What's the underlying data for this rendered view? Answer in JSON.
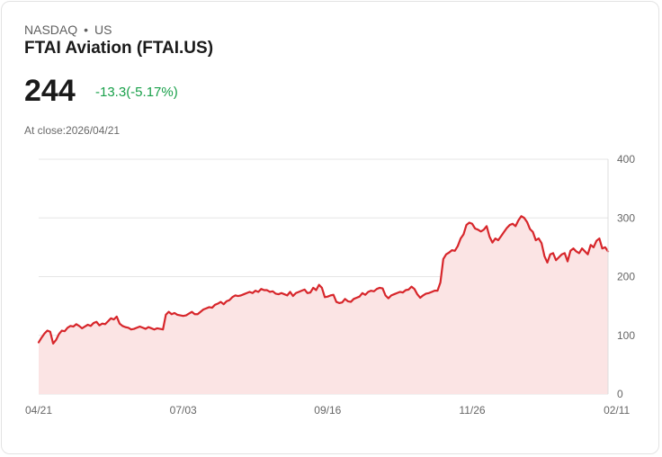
{
  "header": {
    "exchange": "NASDAQ",
    "separator": "•",
    "country": "US",
    "name": "FTAI Aviation (FTAI.US)",
    "price": "244",
    "change": "-13.3(-5.17%)",
    "close_label": "At close:2026/04/21"
  },
  "colors": {
    "line": "#d7262b",
    "area": "#fbe4e4",
    "change": "#19a04a",
    "grid": "#e6e6e6"
  },
  "chart_data": {
    "type": "area",
    "title": "FTAI Aviation (FTAI.US)",
    "xlabel": "",
    "ylabel": "",
    "ylim": [
      0,
      400
    ],
    "y_ticks": [
      "400",
      "300",
      "200",
      "100",
      "0"
    ],
    "y_tick_values": [
      400,
      300,
      200,
      100,
      0
    ],
    "x_ticks": [
      "04/21",
      "07/03",
      "09/16",
      "11/26",
      "02/11"
    ],
    "x_tick_index": [
      0,
      50,
      100,
      150,
      200
    ],
    "grid": true,
    "series": [
      {
        "name": "FTAI.US",
        "values": [
          88,
          96,
          103,
          108,
          106,
          86,
          92,
          102,
          108,
          107,
          113,
          116,
          115,
          119,
          116,
          112,
          115,
          118,
          116,
          121,
          123,
          117,
          120,
          119,
          124,
          129,
          127,
          132,
          120,
          116,
          114,
          113,
          110,
          111,
          113,
          115,
          113,
          111,
          114,
          112,
          110,
          112,
          111,
          110,
          135,
          140,
          136,
          138,
          135,
          134,
          133,
          134,
          137,
          140,
          136,
          136,
          140,
          144,
          146,
          148,
          147,
          152,
          154,
          157,
          153,
          158,
          160,
          165,
          168,
          167,
          168,
          170,
          172,
          174,
          172,
          176,
          174,
          179,
          177,
          177,
          174,
          175,
          171,
          170,
          172,
          170,
          168,
          174,
          167,
          172,
          174,
          176,
          178,
          172,
          173,
          181,
          177,
          186,
          181,
          165,
          166,
          168,
          169,
          157,
          155,
          156,
          162,
          158,
          157,
          162,
          164,
          166,
          172,
          169,
          174,
          176,
          175,
          179,
          181,
          180,
          168,
          163,
          168,
          170,
          172,
          174,
          173,
          177,
          178,
          183,
          179,
          170,
          164,
          168,
          171,
          172,
          174,
          176,
          176,
          190,
          230,
          238,
          241,
          245,
          244,
          252,
          265,
          272,
          288,
          292,
          290,
          282,
          280,
          277,
          280,
          286,
          268,
          258,
          265,
          262,
          269,
          276,
          283,
          288,
          290,
          286,
          296,
          303,
          300,
          293,
          281,
          276,
          262,
          265,
          257,
          235,
          224,
          238,
          240,
          228,
          233,
          238,
          240,
          226,
          244,
          248,
          243,
          240,
          248,
          243,
          238,
          254,
          250,
          261,
          265,
          248,
          250,
          243
        ]
      }
    ]
  }
}
